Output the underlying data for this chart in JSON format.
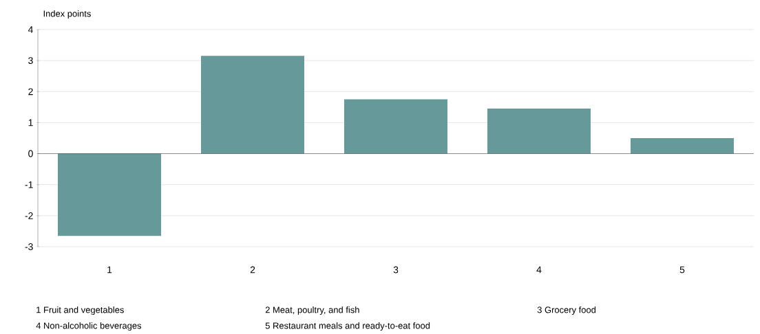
{
  "chart_data": {
    "type": "bar",
    "ylabel": "Index points",
    "categories": [
      "1",
      "2",
      "3",
      "4",
      "5"
    ],
    "values": [
      -2.65,
      3.15,
      1.75,
      1.45,
      0.5
    ],
    "color": "#669999",
    "ylim": [
      -3,
      4
    ],
    "yticks": [
      -3,
      -2,
      -1,
      0,
      1,
      2,
      3,
      4
    ],
    "grid": "y",
    "annotations": [
      "1 Fruit and vegetables",
      "2 Meat, poultry, and fish",
      "3 Grocery food",
      "4 Non-alcoholic beverages",
      "5 Restaurant meals and ready-to-eat food"
    ]
  }
}
